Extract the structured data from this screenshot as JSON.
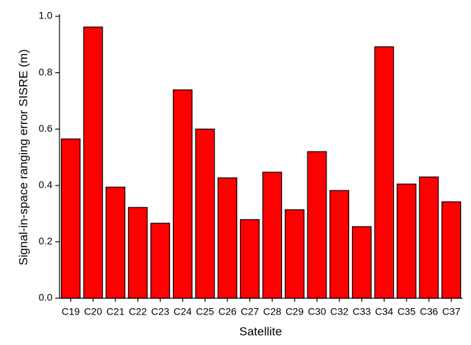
{
  "chart_data": {
    "type": "bar",
    "x_label": "Satellite",
    "y_label": "Signal-in-space ranging error SISRE (m)",
    "categories": [
      "C19",
      "C20",
      "C21",
      "C22",
      "C23",
      "C24",
      "C25",
      "C26",
      "C27",
      "C28",
      "C29",
      "C30",
      "C32",
      "C33",
      "C34",
      "C35",
      "C36",
      "C37"
    ],
    "values": [
      0.565,
      0.962,
      0.394,
      0.322,
      0.266,
      0.739,
      0.6,
      0.427,
      0.279,
      0.447,
      0.314,
      0.52,
      0.382,
      0.254,
      0.892,
      0.405,
      0.43,
      0.342
    ],
    "color": "#ff0000",
    "ylim": [
      0,
      1.0
    ],
    "yticks": [
      {
        "value": 0,
        "label": "0.0"
      },
      0.2,
      0.4,
      0.6,
      0.8,
      {
        "value": 1.0,
        "label": "1.0"
      }
    ],
    "grid": false
  }
}
